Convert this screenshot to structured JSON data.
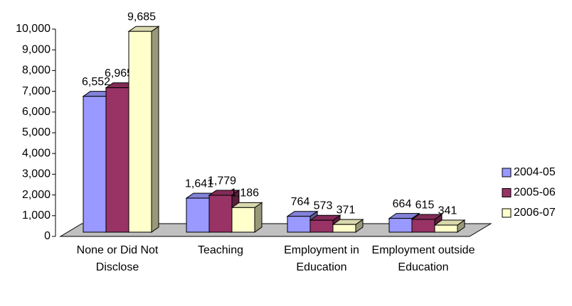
{
  "chart_data": {
    "type": "bar",
    "categories": [
      "None or Did Not Disclose",
      "Teaching",
      "Employment in Education",
      "Employment outside Education"
    ],
    "series": [
      {
        "name": "2004-05",
        "color": "#9999ff",
        "values": [
          6552,
          1641,
          764,
          664
        ],
        "value_labels": [
          "6,552",
          "1,641",
          "764",
          "664"
        ]
      },
      {
        "name": "2005-06",
        "color": "#993366",
        "values": [
          6965,
          1779,
          573,
          615
        ],
        "value_labels": [
          "6,965",
          "1,779",
          "573",
          "615"
        ]
      },
      {
        "name": "2006-07",
        "color": "#ffffcc",
        "values": [
          9685,
          1186,
          371,
          341
        ],
        "value_labels": [
          "9,685",
          "1,186",
          "371",
          "341"
        ]
      }
    ],
    "ylim": [
      0,
      10000
    ],
    "yticks": [
      0,
      {
        "value": 1000,
        "label": "1,000"
      },
      {
        "value": 2000,
        "label": "2,000"
      },
      {
        "value": 3000,
        "label": "3,000"
      },
      {
        "value": 4000,
        "label": "4,000"
      },
      {
        "value": 5000,
        "label": "5,000"
      },
      {
        "value": 6000,
        "label": "6,000"
      },
      {
        "value": 7000,
        "label": "7,000"
      },
      {
        "value": 8000,
        "label": "8,000"
      },
      {
        "value": 9000,
        "label": "9,000"
      },
      {
        "value": 10000,
        "label": "10,000"
      }
    ],
    "legend": "right"
  }
}
